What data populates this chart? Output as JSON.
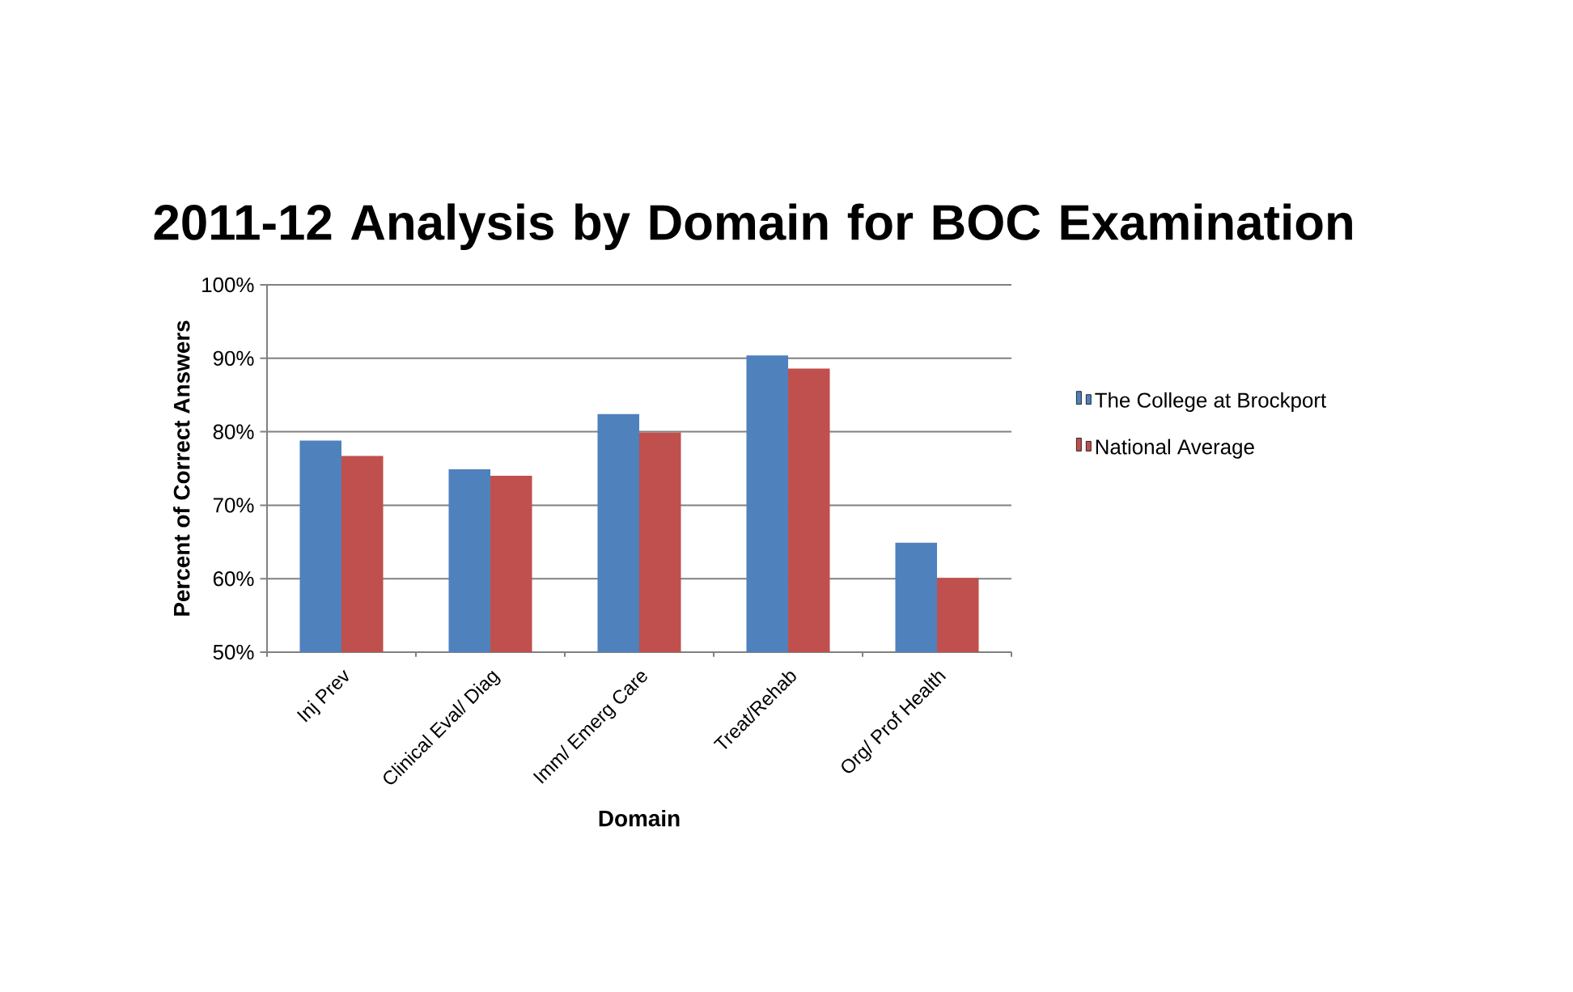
{
  "chart_data": {
    "type": "bar",
    "title": "2011-12 Analysis by Domain for BOC Examination",
    "xlabel": "Domain",
    "ylabel": "Percent of Correct Answers",
    "categories": [
      "Inj Prev",
      "Clinical Eval/ Diag",
      "Imm/ Emerg Care",
      "Treat/Rehab",
      "Org/ Prof Health"
    ],
    "series": [
      {
        "name": "The College at Brockport",
        "color": "#4f81bd",
        "values": [
          78.8,
          74.9,
          82.4,
          90.4,
          64.9
        ]
      },
      {
        "name": "National Average",
        "color": "#c0504d",
        "values": [
          76.7,
          74.0,
          79.9,
          88.6,
          60.1
        ]
      }
    ],
    "ylim": [
      50,
      100
    ],
    "yticks": [
      {
        "value": 50,
        "label": "50%"
      },
      {
        "value": 60,
        "label": "60%"
      },
      {
        "value": 70,
        "label": "70%"
      },
      {
        "value": 80,
        "label": "80%"
      },
      {
        "value": 90,
        "label": "90%"
      },
      {
        "value": 100,
        "label": "100%"
      }
    ],
    "grid": "y",
    "legend": "right"
  }
}
